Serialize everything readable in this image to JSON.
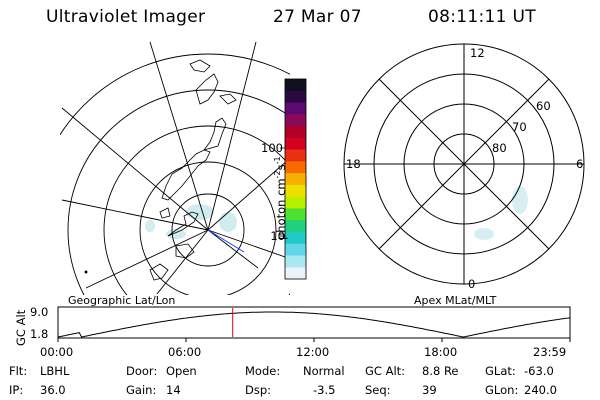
{
  "header": {
    "instrument": "Ultraviolet Imager",
    "date": "27 Mar 07",
    "time": "08:11:11 UT"
  },
  "colorbar": {
    "unit_label": "photon cm-2s-1",
    "ticks": [
      "100",
      "10"
    ],
    "colors": [
      "#101020",
      "#2a0a40",
      "#5a0a70",
      "#8a0a5a",
      "#b0002a",
      "#d40020",
      "#ea3010",
      "#f86a00",
      "#f8b000",
      "#f0e000",
      "#b8f000",
      "#50e030",
      "#20d080",
      "#20c8c8",
      "#60d8e8",
      "#a8e8f0",
      "#e8f4f8"
    ]
  },
  "left_map": {
    "label": "Geographic Lat/Lon",
    "aurora_color": "#bde5ea"
  },
  "right_map": {
    "label": "Apex MLat/MLT",
    "mlt_labels": {
      "top": "12",
      "right": "6",
      "bottom": "0",
      "left": "18"
    },
    "mlat_labels": [
      "60",
      "70",
      "80"
    ]
  },
  "altitude_plot": {
    "ylabel": "GC Alt",
    "y_ticks": [
      "9.0",
      "1.8"
    ],
    "x_ticks": [
      "00:00",
      "06:00",
      "12:00",
      "18:00",
      "23:59"
    ],
    "current_time_hours": 8.19,
    "marker_color": "#e00000"
  },
  "footer": {
    "row1": [
      {
        "key": "Flt:",
        "value": "LBHL"
      },
      {
        "key": "Door:",
        "value": "Open"
      },
      {
        "key": "Mode:",
        "value": "Normal"
      },
      {
        "key": "GC Alt:",
        "value": "8.8 Re"
      },
      {
        "key": "GLat:",
        "value": "-63.0"
      }
    ],
    "row2": [
      {
        "key": "IP:",
        "value": "36.0"
      },
      {
        "key": "Gain:",
        "value": "14"
      },
      {
        "key": "Dsp:",
        "value": "-3.5"
      },
      {
        "key": "Seq:",
        "value": "39"
      },
      {
        "key": "GLon:",
        "value": "240.0"
      }
    ]
  }
}
